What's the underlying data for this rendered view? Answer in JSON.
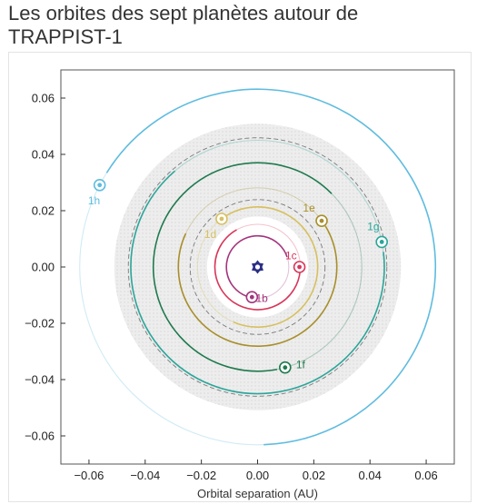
{
  "title": "Les orbites des sept planètes autour de TRAPPIST-1",
  "chart_data": {
    "type": "scatter",
    "title": "Les orbites des sept planètes autour de TRAPPIST-1",
    "xlabel": "Orbital separation (AU)",
    "ylabel": "",
    "xlim": [
      -0.07,
      0.07
    ],
    "ylim": [
      -0.07,
      0.07
    ],
    "xticks": [
      {
        "value": -0.06,
        "label": "−0.06"
      },
      {
        "value": -0.04,
        "label": "−0.04"
      },
      {
        "value": -0.02,
        "label": "−0.02"
      },
      {
        "value": 0.0,
        "label": "0.00"
      },
      {
        "value": 0.02,
        "label": "0.02"
      },
      {
        "value": 0.04,
        "label": "0.04"
      },
      {
        "value": 0.06,
        "label": "0.06"
      }
    ],
    "yticks": [
      {
        "value": 0.06,
        "label": "0.06"
      },
      {
        "value": 0.04,
        "label": "0.04"
      },
      {
        "value": 0.02,
        "label": "0.02"
      },
      {
        "value": 0.0,
        "label": "0.00"
      },
      {
        "value": -0.02,
        "label": "−0.02"
      },
      {
        "value": -0.04,
        "label": "−0.04"
      },
      {
        "value": -0.06,
        "label": "−0.06"
      }
    ],
    "star": {
      "x": 0.0,
      "y": 0.0,
      "color": "#2b2f86"
    },
    "habitable_zone": {
      "inner_radius": 0.018,
      "outer_radius": 0.051,
      "color": "#d9d9d9"
    },
    "dashed_circles": [
      0.024,
      0.046
    ],
    "planets": [
      {
        "name": "1b",
        "x": -0.002,
        "y": -0.0107,
        "orbit_radius": 0.0111,
        "color": "#a3357e",
        "label_dx": 0.0035,
        "label_dy": -0.0005
      },
      {
        "name": "1c",
        "x": 0.0149,
        "y": 0.0,
        "orbit_radius": 0.0152,
        "color": "#d8375a",
        "label_dx": -0.003,
        "label_dy": 0.004
      },
      {
        "name": "1d",
        "x": -0.0128,
        "y": 0.0171,
        "orbit_radius": 0.0214,
        "color": "#d7c060",
        "label_dx": -0.004,
        "label_dy": -0.0055
      },
      {
        "name": "1e",
        "x": 0.0228,
        "y": 0.0164,
        "orbit_radius": 0.0282,
        "color": "#a88f2b",
        "label_dx": -0.0045,
        "label_dy": 0.0045
      },
      {
        "name": "1f",
        "x": 0.0098,
        "y": -0.0357,
        "orbit_radius": 0.0371,
        "color": "#1f7a4e",
        "label_dx": 0.0055,
        "label_dy": 0.001
      },
      {
        "name": "1g",
        "x": 0.0442,
        "y": 0.0089,
        "orbit_radius": 0.0451,
        "color": "#2aa69a",
        "label_dx": -0.003,
        "label_dy": 0.0055
      },
      {
        "name": "1h",
        "x": -0.0562,
        "y": 0.0291,
        "orbit_radius": 0.0633,
        "color": "#5fbcdf",
        "label_dx": -0.002,
        "label_dy": -0.0055
      }
    ]
  }
}
